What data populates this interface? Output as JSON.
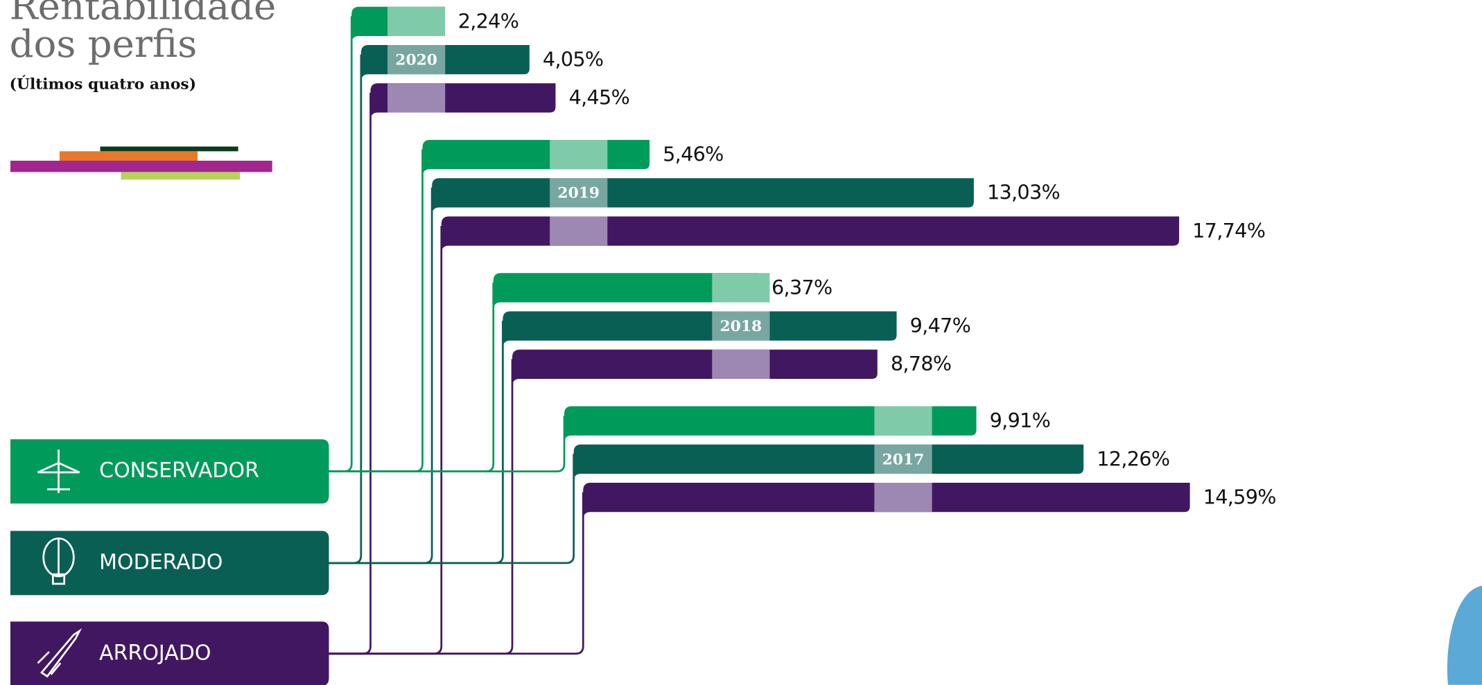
{
  "chart_data": {
    "type": "bar",
    "title": [
      "Rentabilidade",
      "dos perfis"
    ],
    "subtitle": "(Últimos quatro anos)",
    "categories": [
      "2020",
      "2019",
      "2018",
      "2017"
    ],
    "series": [
      {
        "name": "CONSERVADOR",
        "color": "#009a5b",
        "values": [
          2.24,
          5.46,
          6.37,
          9.91
        ],
        "value_labels": [
          "2,24%",
          "5,46%",
          "6,37%",
          "9,91%"
        ]
      },
      {
        "name": "MODERADO",
        "color": "#0a5f55",
        "values": [
          4.05,
          13.03,
          9.47,
          12.26
        ],
        "value_labels": [
          "4,05%",
          "13,03%",
          "9,47%",
          "12,26%"
        ]
      },
      {
        "name": "ARROJADO",
        "color": "#421762",
        "values": [
          4.45,
          17.74,
          8.78,
          14.59
        ],
        "value_labels": [
          "4,45%",
          "17,74%",
          "8,78%",
          "14,59%"
        ]
      }
    ]
  }
}
